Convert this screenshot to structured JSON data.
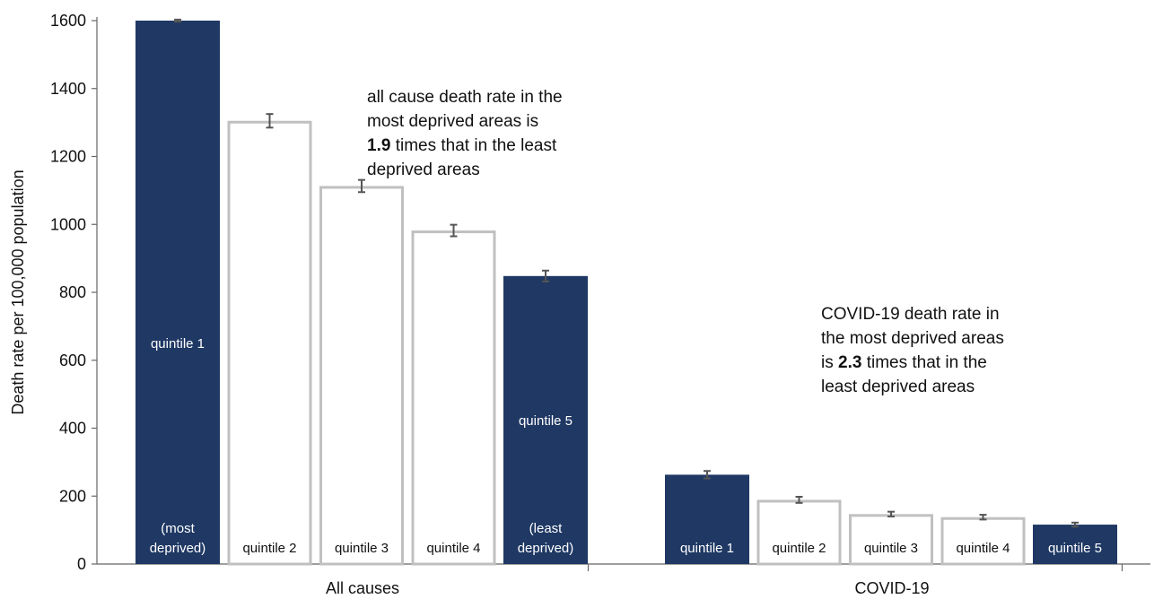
{
  "chart_data": {
    "type": "bar",
    "ylabel": "Death rate per 100,000 population",
    "ylim": [
      0,
      1600
    ],
    "yticks": [
      0,
      200,
      400,
      600,
      800,
      1000,
      1200,
      1400,
      1600
    ],
    "grid": false,
    "colors": {
      "filled": "#1f3864",
      "outline": "#c0c0c0",
      "errorbar": "#555555"
    },
    "groups": [
      {
        "name": "All causes",
        "bars": [
          {
            "quintile": "quintile 1",
            "value": 1600,
            "error": 3,
            "filled": true,
            "mid_label": "quintile 1",
            "bottom_label": [
              "(most",
              "deprived)"
            ]
          },
          {
            "quintile": "quintile 2",
            "value": 1305,
            "error": 20,
            "filled": false,
            "bottom_label": [
              "quintile 2"
            ]
          },
          {
            "quintile": "quintile 3",
            "value": 1113,
            "error": 18,
            "filled": false,
            "bottom_label": [
              "quintile 3"
            ]
          },
          {
            "quintile": "quintile 4",
            "value": 982,
            "error": 17,
            "filled": false,
            "bottom_label": [
              "quintile 4"
            ]
          },
          {
            "quintile": "quintile 5",
            "value": 848,
            "error": 16,
            "filled": true,
            "mid_label": "quintile 5",
            "bottom_label": [
              "(least",
              "deprived)"
            ]
          }
        ]
      },
      {
        "name": "COVID-19",
        "bars": [
          {
            "quintile": "quintile 1",
            "value": 263,
            "error": 11,
            "filled": true,
            "bottom_label": [
              "quintile 1"
            ]
          },
          {
            "quintile": "quintile 2",
            "value": 189,
            "error": 9,
            "filled": false,
            "bottom_label": [
              "quintile 2"
            ]
          },
          {
            "quintile": "quintile 3",
            "value": 147,
            "error": 7,
            "filled": false,
            "bottom_label": [
              "quintile 3"
            ]
          },
          {
            "quintile": "quintile 4",
            "value": 138,
            "error": 7,
            "filled": false,
            "bottom_label": [
              "quintile 4"
            ]
          },
          {
            "quintile": "quintile 5",
            "value": 116,
            "error": 6,
            "filled": true,
            "bottom_label": [
              "quintile 5"
            ]
          }
        ]
      }
    ],
    "annotations": [
      {
        "group": "All causes",
        "lines": [
          [
            {
              "text": "all cause death rate in the"
            }
          ],
          [
            {
              "text": "most deprived areas is"
            }
          ],
          [
            {
              "text": "1.9",
              "bold": true
            },
            {
              "text": " times that in the least"
            }
          ],
          [
            {
              "text": "deprived areas"
            }
          ]
        ]
      },
      {
        "group": "COVID-19",
        "lines": [
          [
            {
              "text": "COVID-19 death rate in"
            }
          ],
          [
            {
              "text": "the most deprived areas"
            }
          ],
          [
            {
              "text": "is "
            },
            {
              "text": "2.3",
              "bold": true
            },
            {
              "text": " times that in the"
            }
          ],
          [
            {
              "text": "least deprived areas"
            }
          ]
        ]
      }
    ]
  }
}
